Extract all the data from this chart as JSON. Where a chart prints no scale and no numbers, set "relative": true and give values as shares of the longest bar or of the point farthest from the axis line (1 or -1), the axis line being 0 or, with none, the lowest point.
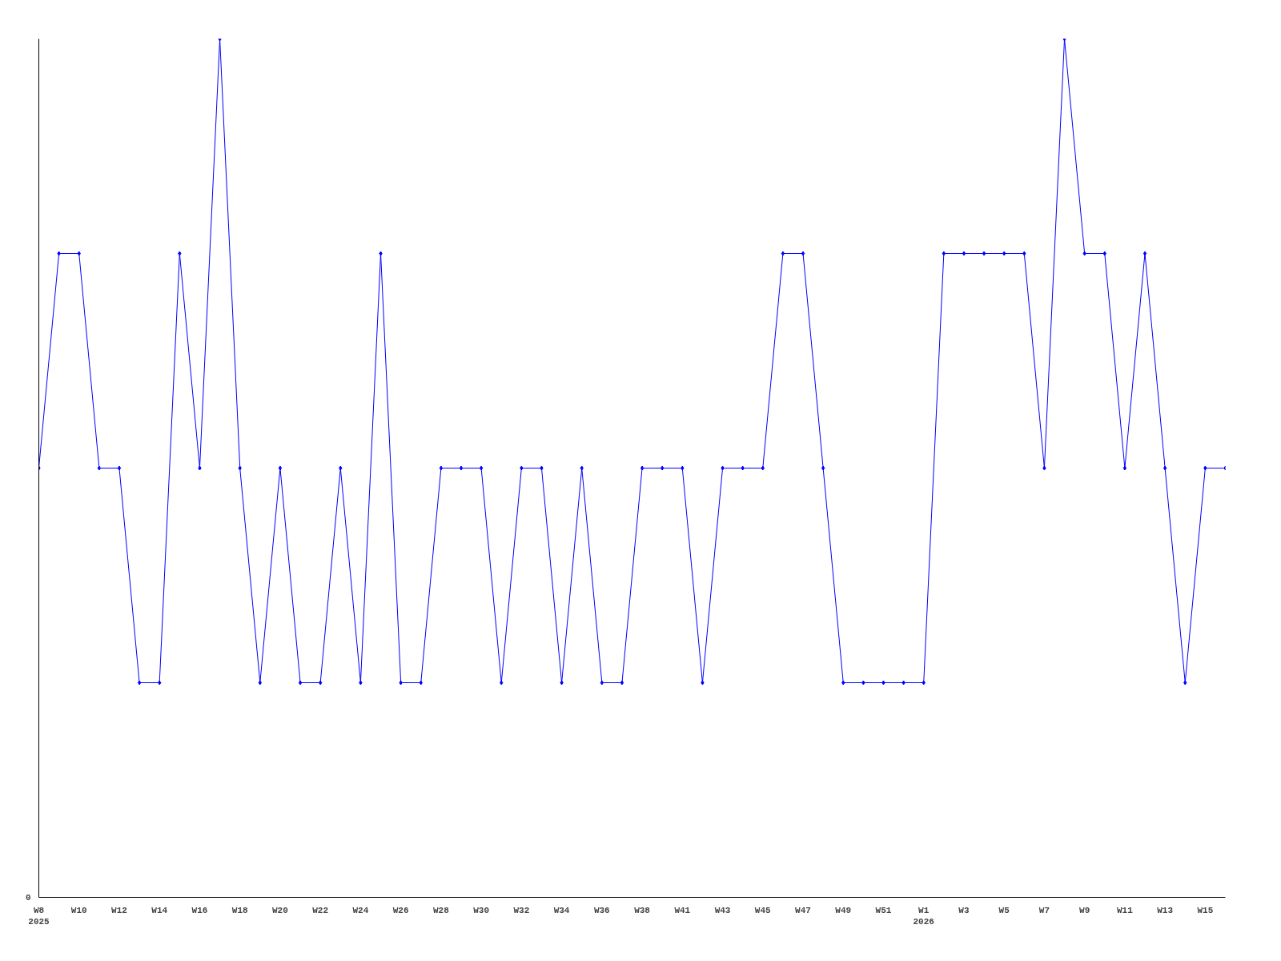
{
  "chart_data": {
    "type": "line",
    "relative": true,
    "annotations": [
      "0"
    ],
    "marker": "diamond",
    "grid": false,
    "categories": [
      "W8\n2025",
      null,
      "W10",
      null,
      "W12",
      null,
      "W14",
      null,
      "W16",
      null,
      "W18",
      null,
      "W20",
      null,
      "W22",
      null,
      "W24",
      null,
      "W26",
      null,
      "W28",
      null,
      "W30",
      null,
      "W32",
      null,
      "W34",
      null,
      "W36",
      null,
      "W38",
      null,
      "W41",
      null,
      "W43",
      null,
      "W45",
      null,
      "W47",
      null,
      "W49",
      null,
      "W51",
      null,
      "W1\n2026",
      null,
      "W3",
      null,
      "W5",
      null,
      "W7",
      null,
      "W9",
      null,
      "W11",
      null,
      "W13",
      null,
      "W15",
      null
    ],
    "series": [
      {
        "color": "#0000ff",
        "values": [
          0.5,
          0.75,
          0.75,
          0.5,
          0.5,
          0.25,
          0.25,
          0.75,
          0.5,
          1,
          0.5,
          0.25,
          0.5,
          0.25,
          0.25,
          0.5,
          0.25,
          0.75,
          0.25,
          0.25,
          0.5,
          0.5,
          0.5,
          0.25,
          0.5,
          0.5,
          0.25,
          0.5,
          0.25,
          0.25,
          0.5,
          0.5,
          0.5,
          0.25,
          0.5,
          0.5,
          0.5,
          0.75,
          0.75,
          0.5,
          0.25,
          0.25,
          0.25,
          0.25,
          0.25,
          0.75,
          0.75,
          0.75,
          0.75,
          0.75,
          0.5,
          1,
          0.75,
          0.75,
          0.5,
          0.75,
          0.5,
          0.25,
          0.5,
          0.5
        ]
      }
    ]
  }
}
